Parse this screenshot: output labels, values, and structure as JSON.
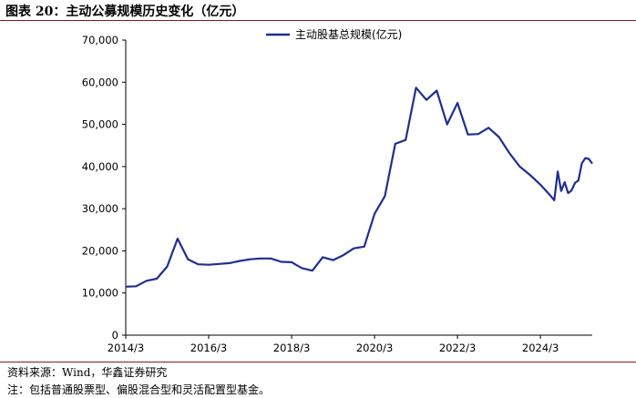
{
  "header": {
    "title": "图表 20：主动公募规模历史变化（亿元）"
  },
  "footer": {
    "source": "资料来源：Wind，华鑫证券研究",
    "note": "注：包括普通股票型、偏股混合型和灵活配置型基金。"
  },
  "colors": {
    "line": "#1f2f8f",
    "axis": "#000000",
    "rule": "#8b1a1a"
  },
  "chart_data": {
    "type": "line",
    "title": "",
    "xlabel": "",
    "ylabel": "",
    "ylim": [
      0,
      70000
    ],
    "yticks": [
      0,
      10000,
      20000,
      30000,
      40000,
      50000,
      60000,
      70000
    ],
    "ytick_labels": [
      "0",
      "10,000",
      "20,000",
      "30,000",
      "40,000",
      "50,000",
      "60,000",
      "70,000"
    ],
    "xlim": [
      "2014-03",
      "2025-06"
    ],
    "xticks": [
      "2014-03",
      "2016-03",
      "2018-03",
      "2020-03",
      "2022-03",
      "2024-03"
    ],
    "xtick_labels": [
      "2014/3",
      "2016/3",
      "2018/3",
      "2020/3",
      "2022/3",
      "2024/3"
    ],
    "grid": false,
    "legend_position": "top-center",
    "series": [
      {
        "name": "主动股基总规模(亿元)",
        "x": [
          "2014-03",
          "2014-06",
          "2014-09",
          "2014-12",
          "2015-03",
          "2015-06",
          "2015-09",
          "2015-12",
          "2016-03",
          "2016-06",
          "2016-09",
          "2016-12",
          "2017-03",
          "2017-06",
          "2017-09",
          "2017-12",
          "2018-03",
          "2018-06",
          "2018-09",
          "2018-12",
          "2019-03",
          "2019-06",
          "2019-09",
          "2019-12",
          "2020-03",
          "2020-06",
          "2020-09",
          "2020-12",
          "2021-03",
          "2021-06",
          "2021-09",
          "2021-12",
          "2022-03",
          "2022-06",
          "2022-09",
          "2022-12",
          "2023-03",
          "2023-06",
          "2023-09",
          "2023-12",
          "2024-03",
          "2024-06",
          "2024-07",
          "2024-08",
          "2024-09",
          "2024-10",
          "2024-11",
          "2024-12",
          "2025-01",
          "2025-02",
          "2025-03",
          "2025-04",
          "2025-05",
          "2025-06"
        ],
        "values": [
          11500,
          11600,
          12900,
          13400,
          16300,
          22900,
          18000,
          16800,
          16700,
          16900,
          17100,
          17600,
          18000,
          18200,
          18200,
          17400,
          17300,
          15900,
          15300,
          18500,
          17800,
          19000,
          20600,
          21000,
          28800,
          33000,
          45400,
          46300,
          58700,
          55800,
          58000,
          50000,
          55100,
          47600,
          47700,
          49200,
          47000,
          43200,
          40000,
          38000,
          35700,
          33000,
          32000,
          38800,
          34200,
          36300,
          33700,
          34300,
          36100,
          36700,
          40800,
          42000,
          41800,
          40700
        ]
      }
    ]
  }
}
